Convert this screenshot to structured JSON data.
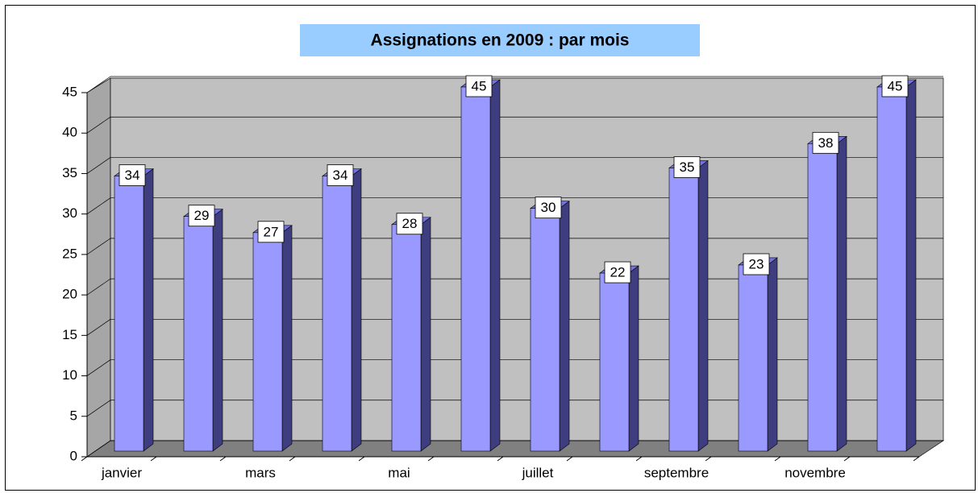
{
  "chart_data": {
    "type": "bar",
    "title": "Assignations en 2009 : par mois",
    "categories": [
      "janvier",
      null,
      "mars",
      null,
      "mai",
      null,
      "juillet",
      null,
      "septembre",
      null,
      "novembre",
      null
    ],
    "values": [
      34,
      29,
      27,
      34,
      28,
      45,
      30,
      22,
      35,
      23,
      38,
      45
    ],
    "color": "#9999ff",
    "ylim": [
      0,
      45
    ],
    "yticks": [
      0,
      5,
      10,
      15,
      20,
      25,
      30,
      35,
      40,
      45
    ],
    "grid": true
  }
}
